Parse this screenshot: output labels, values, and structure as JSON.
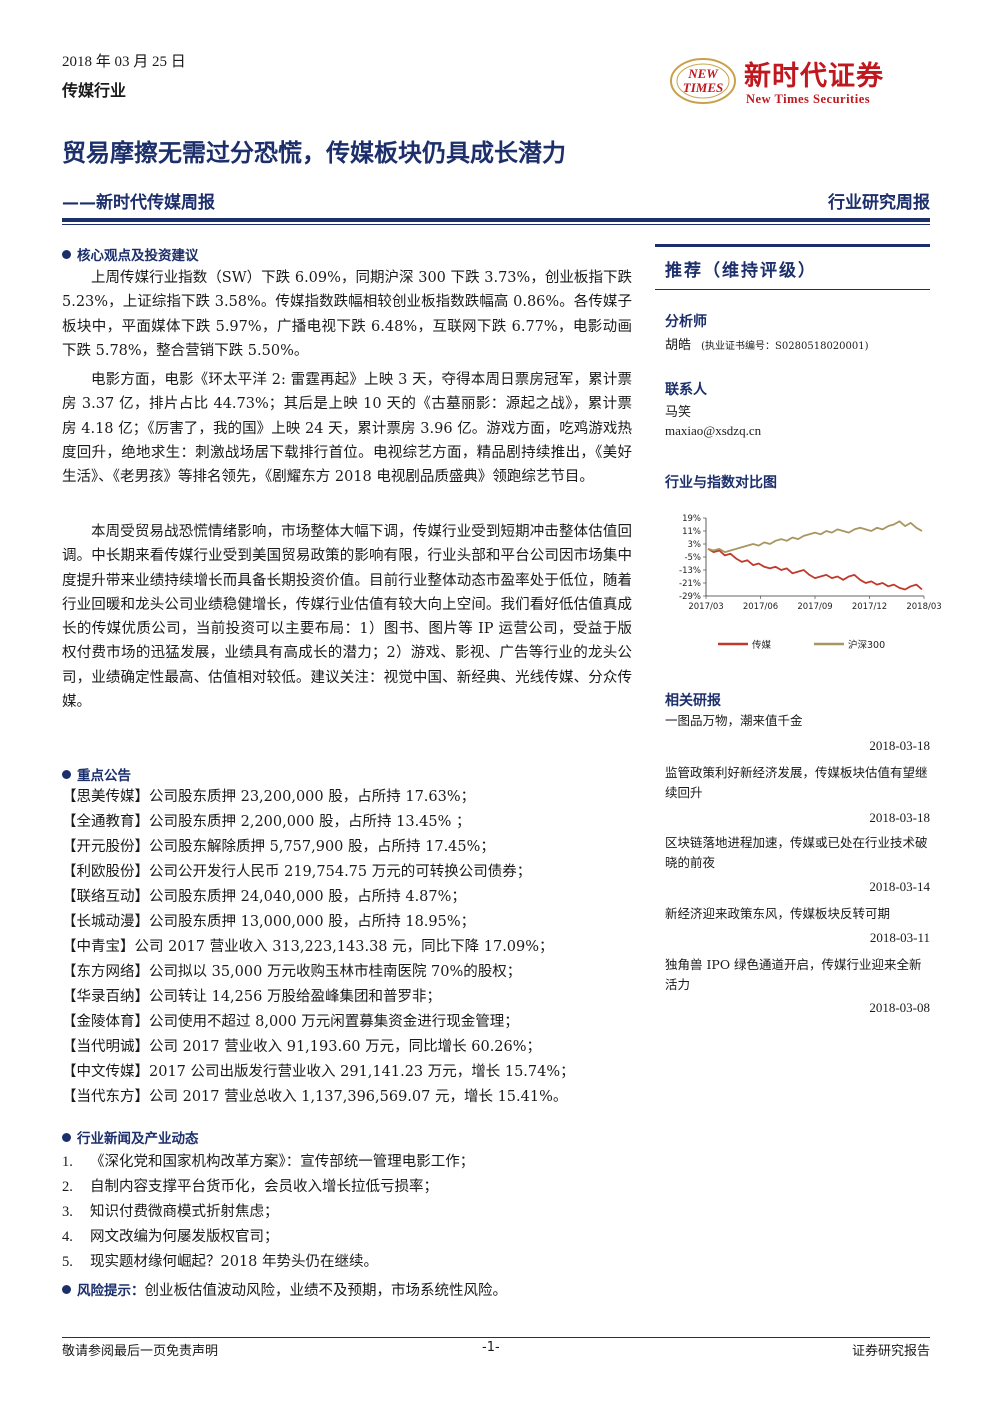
{
  "header": {
    "date": "2018 年 03 月 25 日",
    "industry": "传媒行业",
    "logo_cn": "新时代证券",
    "logo_en": "New Times Securities",
    "logo_mark_line1": "NEW",
    "logo_mark_line2": "TIMES"
  },
  "title": "贸易摩擦无需过分恐慌，传媒板块仍具成长潜力",
  "subtitle": "——新时代传媒周报",
  "report_type": "行业研究周报",
  "section1": {
    "heading": "核心观点及投资建议",
    "para1": "上周传媒行业指数（SW）下跌 6.09%，同期沪深 300 下跌 3.73%，创业板指下跌 5.23%，上证综指下跌 3.58%。传媒指数跌幅相较创业板指数跌幅高 0.86%。各传媒子板块中，平面媒体下跌 5.97%，广播电视下跌 6.48%，互联网下跌 6.77%，电影动画下跌 5.78%，整合营销下跌 5.50%。",
    "para2": "电影方面，电影《环太平洋 2: 雷霆再起》上映 3 天，夺得本周日票房冠军，累计票房 3.37 亿，排片占比 44.73%；其后是上映 10 天的《古墓丽影：源起之战》，累计票房 4.18 亿；《厉害了，我的国》上映 24 天，累计票房 3.96 亿。游戏方面，吃鸡游戏热度回升，绝地求生：刺激战场居下载排行首位。电视综艺方面，精品剧持续推出，《美好生活》、《老男孩》等排名领先，《剧耀东方 2018 电视剧品质盛典》领跑综艺节目。",
    "para3": "本周受贸易战恐慌情绪影响，市场整体大幅下调，传媒行业受到短期冲击整体估值回调。中长期来看传媒行业受到美国贸易政策的影响有限，行业头部和平台公司因市场集中度提升带来业绩持续增长而具备长期投资价值。目前行业整体动态市盈率处于低位，随着行业回暖和龙头公司业绩稳健增长，传媒行业估值有较大向上空间。我们看好低估值真成长的传媒优质公司，当前投资可以主要布局：1）图书、图片等 IP 运营公司，受益于版权付费市场的迅猛发展，业绩具有高成长的潜力；2）游戏、影视、广告等行业的龙头公司，业绩确定性最高、估值相对较低。建议关注：视觉中国、新经典、光线传媒、分众传媒。"
  },
  "section2": {
    "heading": "重点公告",
    "rows": [
      "【思美传媒】公司股东质押 23,200,000 股，占所持 17.63%；",
      "【全通教育】公司股东质押 2,200,000 股，占所持 13.45% ；",
      "【开元股份】公司股东解除质押 5,757,900 股，占所持 17.45%；",
      "【利欧股份】公司公开发行人民币 219,754.75 万元的可转换公司债券；",
      "【联络互动】公司股东质押 24,040,000 股，占所持 4.87%；",
      "【长城动漫】公司股东质押 13,000,000 股，占所持 18.95%；",
      "【中青宝】公司 2017 营业收入 313,223,143.38 元，同比下降 17.09%；",
      "【东方网络】公司拟以 35,000 万元收购玉林市桂南医院 70%的股权；",
      "【华录百纳】公司转让 14,256 万股给盈峰集团和普罗非；",
      "【金陵体育】公司使用不超过 8,000 万元闲置募集资金进行现金管理；",
      "【当代明诚】公司 2017 营业收入 91,193.60 万元，同比增长 60.26%；",
      "【中文传媒】2017 公司出版发行营业收入 291,141.23 万元，增长 15.74%；",
      "【当代东方】公司 2017 营业总收入 1,137,396,569.07 元，增长 15.41%。"
    ]
  },
  "section3": {
    "heading": "行业新闻及产业动态",
    "items": [
      {
        "num": "1.",
        "text": "《深化党和国家机构改革方案》：宣传部统一管理电影工作；"
      },
      {
        "num": "2.",
        "text": "自制内容支撑平台货币化，会员收入增长拉低亏损率；"
      },
      {
        "num": "3.",
        "text": "知识付费微商模式折射焦虑；"
      },
      {
        "num": "4.",
        "text": "网文改编为何屡发版权官司；"
      },
      {
        "num": "5.",
        "text": "现实题材缘何崛起？2018 年势头仍在继续。"
      }
    ]
  },
  "risk": {
    "label": "风险提示：",
    "text": "创业板估值波动风险，业绩不及预期，市场系统性风险。"
  },
  "sidebar": {
    "rating": "推荐（维持评级）",
    "analyst_head": "分析师",
    "analyst_name": "胡皓",
    "analyst_cert": "(执业证书编号：S0280518020001)",
    "contact_head": "联系人",
    "contact_name": "马笑",
    "contact_email": "maxiao@xsdzq.cn",
    "chart_head": "行业与指数对比图",
    "related_head": "相关研报",
    "related": [
      {
        "title": "一图品万物，潮来值千金",
        "date": "2018-03-18"
      },
      {
        "title": "监管政策利好新经济发展，传媒板块估值有望继续回升",
        "date": "2018-03-18"
      },
      {
        "title": "区块链落地进程加速，传媒或已处在行业技术破晓的前夜",
        "date": "2018-03-14"
      },
      {
        "title": "新经济迎来政策东风，传媒板块反转可期",
        "date": "2018-03-11"
      },
      {
        "title": "独角兽 IPO 绿色通道开启，传媒行业迎来全新活力",
        "date": "2018-03-08"
      }
    ]
  },
  "chart_data": {
    "type": "line",
    "title": "",
    "xlabel": "",
    "ylabel": "",
    "ylim": [
      -29,
      19
    ],
    "yticks": [
      "19%",
      "11%",
      "3%",
      "-5%",
      "-13%",
      "-21%",
      "-29%"
    ],
    "ytick_values": [
      19,
      11,
      3,
      -5,
      -13,
      -21,
      -29
    ],
    "xticks": [
      "2017/03",
      "2017/06",
      "2017/09",
      "2017/12",
      "2018/03"
    ],
    "legend_position": "bottom",
    "grid": false,
    "series": [
      {
        "name": "传媒",
        "color": "#c0392b",
        "values": [
          0,
          -2,
          -1,
          -4,
          -3,
          -6,
          -8,
          -7,
          -10,
          -9,
          -11,
          -12,
          -11,
          -13,
          -12,
          -15,
          -14,
          -13,
          -16,
          -18,
          -17,
          -16,
          -18,
          -17,
          -19,
          -17,
          -16,
          -19,
          -21,
          -20,
          -22,
          -21,
          -23,
          -22,
          -24,
          -25,
          -23,
          -22,
          -25
        ]
      },
      {
        "name": "沪深300",
        "color": "#a89660",
        "values": [
          0,
          -1,
          0,
          -2,
          -1,
          0,
          1,
          2,
          3,
          2,
          4,
          3,
          5,
          6,
          5,
          7,
          6,
          8,
          9,
          10,
          9,
          11,
          10,
          12,
          11,
          10,
          12,
          13,
          12,
          11,
          13,
          12,
          14,
          15,
          17,
          14,
          16,
          13,
          11
        ]
      }
    ]
  },
  "footer": {
    "left": "敬请参阅最后一页免责声明",
    "center": "-1-",
    "right": "证券研究报告"
  }
}
